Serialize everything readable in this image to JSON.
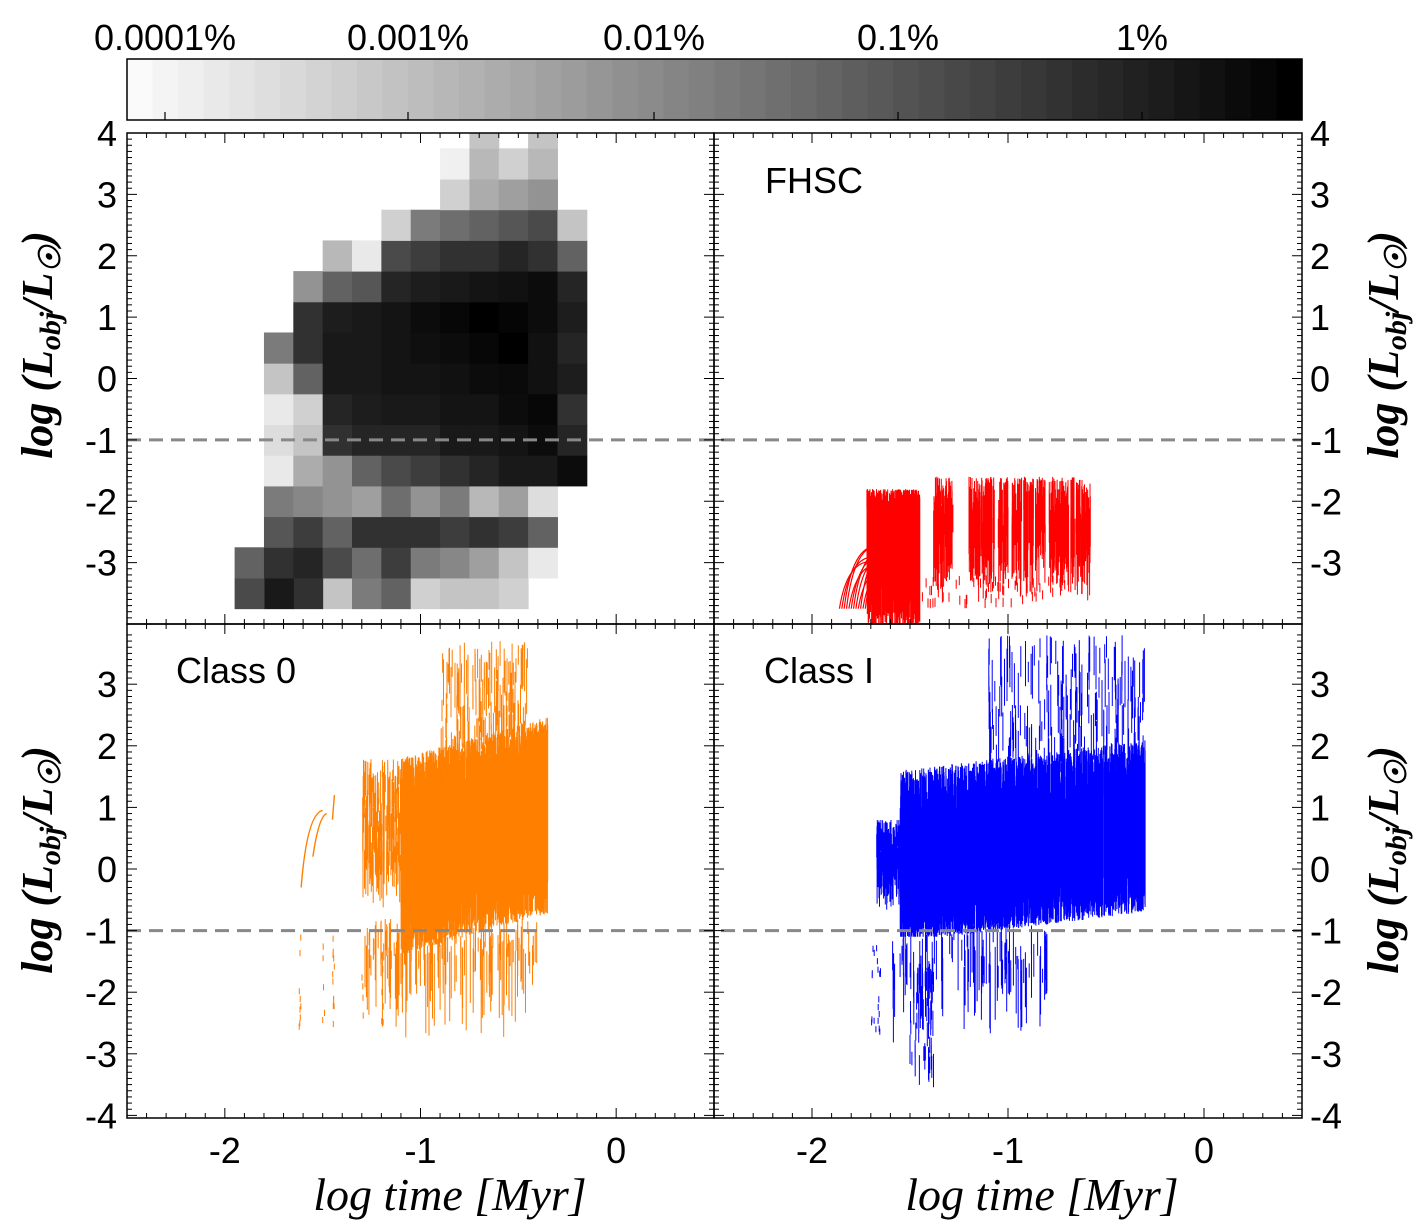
{
  "colorbar": {
    "labels": [
      "0.0001%",
      "0.001%",
      "0.01%",
      "0.1%",
      "1%"
    ],
    "log_min": -6.3,
    "log_max": -1.75
  },
  "axes": {
    "x_title": "log time [Myr]",
    "y_title": "log (L_obj / L_☉)",
    "y_title_main": "log (L",
    "y_title_sub": "obj",
    "y_title_mid": "/L",
    "y_title_sun": "☉",
    "y_title_end": ")",
    "x_ticks": [
      -2,
      -1,
      0
    ],
    "x_tick_labels": [
      "-2",
      "-1",
      "0"
    ],
    "top_y_ticks": [
      4,
      3,
      2,
      1,
      0,
      -1,
      -2,
      -3
    ],
    "top_y_tick_labels": [
      "4",
      "3",
      "2",
      "1",
      "0",
      "-1",
      "-2",
      "-3"
    ],
    "bottom_y_ticks": [
      3,
      2,
      1,
      0,
      -1,
      -2,
      -3,
      -4
    ],
    "bottom_y_tick_labels": [
      "3",
      "2",
      "1",
      "0",
      "-1",
      "-2",
      "-3",
      "-4"
    ]
  },
  "panels": {
    "top_left": "",
    "top_right": "FHSC",
    "bottom_left": "Class 0",
    "bottom_right": "Class I"
  },
  "chart_data": [
    {
      "type": "heatmap",
      "panel": "top-left",
      "title": "",
      "xlabel": "log time [Myr]",
      "ylabel": "log (L_obj/L_sun)",
      "xlim": [
        -2.5,
        0.5
      ],
      "ylim": [
        -4,
        4
      ],
      "threshold_line": -1,
      "bin_width_x": 0.15,
      "bin_height_y": 0.5,
      "cells": [
        [
          -1.425,
          -3.5,
          0.2
        ],
        [
          -1.275,
          -3.5,
          0.5
        ],
        [
          -1.125,
          -3.5,
          0.6
        ],
        [
          -0.975,
          -3.5,
          0.15
        ],
        [
          -0.825,
          -3.5,
          0.2
        ],
        [
          -0.675,
          -3.5,
          0.2
        ],
        [
          -0.525,
          -3.5,
          0.15
        ],
        [
          -1.575,
          -3.5,
          0.8
        ],
        [
          -1.725,
          -3.5,
          0.9
        ],
        [
          -1.875,
          -3.5,
          0.7
        ],
        [
          -1.875,
          -3.0,
          0.6
        ],
        [
          -1.725,
          -3.0,
          0.8
        ],
        [
          -1.575,
          -3.0,
          0.85
        ],
        [
          -1.425,
          -3.0,
          0.7
        ],
        [
          -1.275,
          -3.0,
          0.55
        ],
        [
          -1.125,
          -3.0,
          0.75
        ],
        [
          -0.975,
          -3.0,
          0.5
        ],
        [
          -0.825,
          -3.0,
          0.45
        ],
        [
          -0.675,
          -3.0,
          0.35
        ],
        [
          -0.525,
          -3.0,
          0.2
        ],
        [
          -0.375,
          -3.0,
          0.05
        ],
        [
          -1.725,
          -2.5,
          0.65
        ],
        [
          -1.575,
          -2.5,
          0.75
        ],
        [
          -1.425,
          -2.5,
          0.6
        ],
        [
          -1.275,
          -2.5,
          0.8
        ],
        [
          -1.125,
          -2.5,
          0.8
        ],
        [
          -0.975,
          -2.5,
          0.8
        ],
        [
          -0.825,
          -2.5,
          0.75
        ],
        [
          -0.675,
          -2.5,
          0.8
        ],
        [
          -0.525,
          -2.5,
          0.75
        ],
        [
          -0.375,
          -2.5,
          0.6
        ],
        [
          -1.725,
          -2.0,
          0.5
        ],
        [
          -1.575,
          -2.0,
          0.45
        ],
        [
          -1.425,
          -2.0,
          0.4
        ],
        [
          -1.275,
          -2.0,
          0.35
        ],
        [
          -1.125,
          -2.0,
          0.55
        ],
        [
          -0.975,
          -2.0,
          0.4
        ],
        [
          -0.825,
          -2.0,
          0.5
        ],
        [
          -0.675,
          -2.0,
          0.25
        ],
        [
          -0.525,
          -2.0,
          0.35
        ],
        [
          -0.375,
          -2.0,
          0.1
        ],
        [
          -1.725,
          -1.5,
          0.05
        ],
        [
          -1.575,
          -1.5,
          0.3
        ],
        [
          -1.425,
          -1.5,
          0.4
        ],
        [
          -1.275,
          -1.5,
          0.6
        ],
        [
          -1.125,
          -1.5,
          0.7
        ],
        [
          -0.975,
          -1.5,
          0.75
        ],
        [
          -0.825,
          -1.5,
          0.8
        ],
        [
          -0.675,
          -1.5,
          0.85
        ],
        [
          -0.525,
          -1.5,
          0.9
        ],
        [
          -0.375,
          -1.5,
          0.9
        ],
        [
          -0.225,
          -1.5,
          0.95
        ],
        [
          -1.725,
          -1.0,
          0.1
        ],
        [
          -1.575,
          -1.0,
          0.2
        ],
        [
          -1.425,
          -1.0,
          0.8
        ],
        [
          -1.275,
          -1.0,
          0.85
        ],
        [
          -1.125,
          -1.0,
          0.85
        ],
        [
          -0.975,
          -1.0,
          0.85
        ],
        [
          -0.825,
          -1.0,
          0.9
        ],
        [
          -0.675,
          -1.0,
          0.9
        ],
        [
          -0.525,
          -1.0,
          0.92
        ],
        [
          -0.375,
          -1.0,
          0.95
        ],
        [
          -0.225,
          -1.0,
          0.85
        ],
        [
          -1.725,
          -0.5,
          0.05
        ],
        [
          -1.575,
          -0.5,
          0.15
        ],
        [
          -1.425,
          -0.5,
          0.85
        ],
        [
          -1.275,
          -0.5,
          0.88
        ],
        [
          -1.125,
          -0.5,
          0.9
        ],
        [
          -0.975,
          -0.5,
          0.9
        ],
        [
          -0.825,
          -0.5,
          0.92
        ],
        [
          -0.675,
          -0.5,
          0.92
        ],
        [
          -0.525,
          -0.5,
          0.95
        ],
        [
          -0.375,
          -0.5,
          0.97
        ],
        [
          -0.225,
          -0.5,
          0.8
        ],
        [
          -1.725,
          0.0,
          0.2
        ],
        [
          -1.575,
          0.0,
          0.6
        ],
        [
          -1.425,
          0.0,
          0.9
        ],
        [
          -1.275,
          0.0,
          0.9
        ],
        [
          -1.125,
          0.0,
          0.92
        ],
        [
          -0.975,
          0.0,
          0.92
        ],
        [
          -0.825,
          0.0,
          0.93
        ],
        [
          -0.675,
          0.0,
          0.95
        ],
        [
          -0.525,
          0.0,
          0.96
        ],
        [
          -0.375,
          0.0,
          0.93
        ],
        [
          -0.225,
          0.0,
          0.88
        ],
        [
          -1.725,
          0.5,
          0.5
        ],
        [
          -1.575,
          0.5,
          0.8
        ],
        [
          -1.425,
          0.5,
          0.9
        ],
        [
          -1.275,
          0.5,
          0.9
        ],
        [
          -1.125,
          0.5,
          0.92
        ],
        [
          -0.975,
          0.5,
          0.94
        ],
        [
          -0.825,
          0.5,
          0.95
        ],
        [
          -0.675,
          0.5,
          0.97
        ],
        [
          -0.525,
          0.5,
          1.0
        ],
        [
          -0.375,
          0.5,
          0.93
        ],
        [
          -0.225,
          0.5,
          0.85
        ],
        [
          -1.575,
          1.0,
          0.8
        ],
        [
          -1.425,
          1.0,
          0.88
        ],
        [
          -1.275,
          1.0,
          0.9
        ],
        [
          -1.125,
          1.0,
          0.92
        ],
        [
          -0.975,
          1.0,
          0.95
        ],
        [
          -0.825,
          1.0,
          0.97
        ],
        [
          -0.675,
          1.0,
          1.0
        ],
        [
          -0.525,
          1.0,
          0.98
        ],
        [
          -0.375,
          1.0,
          0.95
        ],
        [
          -0.225,
          1.0,
          0.88
        ],
        [
          -1.575,
          1.5,
          0.4
        ],
        [
          -1.425,
          1.5,
          0.6
        ],
        [
          -1.275,
          1.5,
          0.65
        ],
        [
          -1.125,
          1.5,
          0.85
        ],
        [
          -0.975,
          1.5,
          0.88
        ],
        [
          -0.825,
          1.5,
          0.9
        ],
        [
          -0.675,
          1.5,
          0.92
        ],
        [
          -0.525,
          1.5,
          0.93
        ],
        [
          -0.375,
          1.5,
          0.95
        ],
        [
          -0.225,
          1.5,
          0.85
        ],
        [
          -1.425,
          2.0,
          0.25
        ],
        [
          -1.275,
          2.0,
          0.05
        ],
        [
          -1.125,
          2.0,
          0.7
        ],
        [
          -0.975,
          2.0,
          0.75
        ],
        [
          -0.825,
          2.0,
          0.8
        ],
        [
          -0.675,
          2.0,
          0.8
        ],
        [
          -0.525,
          2.0,
          0.85
        ],
        [
          -0.375,
          2.0,
          0.8
        ],
        [
          -0.225,
          2.0,
          0.6
        ],
        [
          -1.125,
          2.5,
          0.15
        ],
        [
          -0.975,
          2.5,
          0.5
        ],
        [
          -0.825,
          2.5,
          0.55
        ],
        [
          -0.675,
          2.5,
          0.6
        ],
        [
          -0.525,
          2.5,
          0.65
        ],
        [
          -0.375,
          2.5,
          0.7
        ],
        [
          -0.225,
          2.5,
          0.2
        ],
        [
          -0.825,
          3.0,
          0.15
        ],
        [
          -0.675,
          3.0,
          0.3
        ],
        [
          -0.525,
          3.0,
          0.35
        ],
        [
          -0.375,
          3.0,
          0.4
        ],
        [
          -0.825,
          3.5,
          0.02
        ],
        [
          -0.675,
          3.5,
          0.25
        ],
        [
          -0.525,
          3.5,
          0.15
        ],
        [
          -0.375,
          3.5,
          0.25
        ],
        [
          -0.675,
          4.0,
          0.2
        ],
        [
          -0.375,
          4.0,
          0.2
        ]
      ]
    },
    {
      "type": "scatter",
      "panel": "top-right",
      "title": "FHSC",
      "color": "#ff0000",
      "xlabel": "log time [Myr]",
      "ylabel": "log (L_obj/L_sun)",
      "xlim": [
        -2.5,
        0.5
      ],
      "ylim": [
        -4,
        4
      ],
      "threshold_line": -1,
      "x_range": [
        -1.85,
        -0.62
      ],
      "y_range": [
        -4.0,
        -1.4
      ]
    },
    {
      "type": "scatter",
      "panel": "bottom-left",
      "title": "Class 0",
      "color": "#ff7f00",
      "xlabel": "log time [Myr]",
      "ylabel": "log (L_obj/L_sun)",
      "xlim": [
        -2.5,
        0.5
      ],
      "ylim": [
        -4,
        4
      ],
      "threshold_line": -1,
      "x_range": [
        -1.62,
        -0.35
      ],
      "y_range": [
        -2.9,
        3.8
      ]
    },
    {
      "type": "scatter",
      "panel": "bottom-right",
      "title": "Class I",
      "color": "#0000ff",
      "xlabel": "log time [Myr]",
      "ylabel": "log (L_obj/L_sun)",
      "xlim": [
        -2.5,
        0.5
      ],
      "ylim": [
        -4,
        4
      ],
      "threshold_line": -1,
      "x_range": [
        -1.67,
        -0.3
      ],
      "y_range": [
        -3.5,
        3.8
      ]
    }
  ]
}
